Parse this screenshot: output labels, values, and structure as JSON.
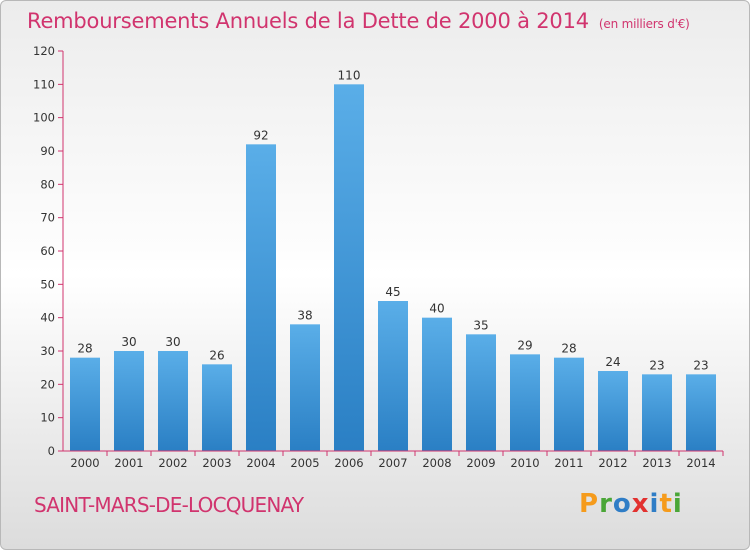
{
  "header": {
    "title": "Remboursements Annuels de la Dette de 2000 à 2014",
    "subtitle": "(en milliers d'€)"
  },
  "footer": {
    "city": "SAINT-MARS-DE-LOCQUENAY",
    "logo": "Proxiti"
  },
  "colors": {
    "bar_top": "#5aaee8",
    "bar_bottom": "#2a7fc4",
    "title": "#d1346e",
    "axis": "#d1346e"
  },
  "chart_data": {
    "type": "bar",
    "title": "Remboursements Annuels de la Dette de 2000 à 2014",
    "xlabel": "",
    "ylabel": "",
    "ylim": [
      0,
      120
    ],
    "yticks": [
      0,
      10,
      20,
      30,
      40,
      50,
      60,
      70,
      80,
      90,
      100,
      110,
      120
    ],
    "grid": false,
    "categories": [
      "2000",
      "2001",
      "2002",
      "2003",
      "2004",
      "2005",
      "2006",
      "2007",
      "2008",
      "2009",
      "2010",
      "2011",
      "2012",
      "2013",
      "2014"
    ],
    "values": [
      28,
      30,
      30,
      26,
      92,
      38,
      110,
      45,
      40,
      35,
      29,
      28,
      24,
      23,
      23
    ]
  }
}
